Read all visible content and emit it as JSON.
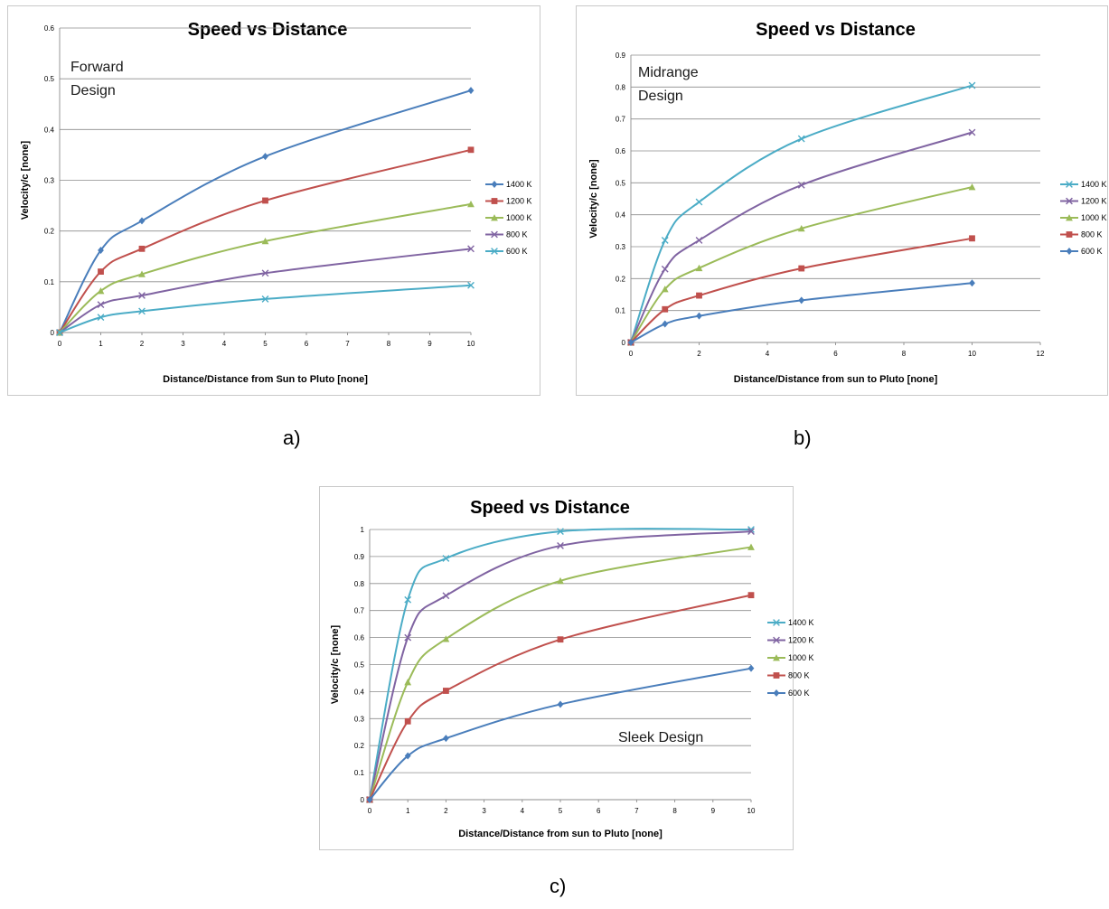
{
  "captions": {
    "a": "a)",
    "b": "b)",
    "c": "c)"
  },
  "chart_data": [
    {
      "panel": "a",
      "type": "line",
      "title": "Speed vs Distance",
      "xlabel": "Distance/Distance from Sun to Pluto [none]",
      "ylabel": "Velocity/c [none]",
      "annotation": [
        "Forward",
        "Design"
      ],
      "xlim": [
        0,
        10
      ],
      "xticks": [
        0,
        1,
        2,
        3,
        4,
        5,
        6,
        7,
        8,
        9,
        10
      ],
      "xtick_labels": [
        "0",
        "1",
        "2",
        "3",
        "4",
        "5",
        "6",
        "7",
        "8",
        "9",
        "10"
      ],
      "ylim": [
        0,
        0.6
      ],
      "yticks": [
        0,
        0.1,
        0.2,
        0.3,
        0.4,
        0.5,
        0.6
      ],
      "ytick_labels": [
        "0",
        "0.1",
        "0.2",
        "0.3",
        "0.4",
        "0.5",
        "0.6"
      ],
      "grid": "horizontal",
      "legend_position": "right",
      "x": [
        0,
        1,
        2,
        5,
        10
      ],
      "series": [
        {
          "name": "1400 K",
          "color": "#4a7ebb",
          "marker": "diamond",
          "values": [
            0,
            0.162,
            0.22,
            0.347,
            0.477
          ]
        },
        {
          "name": "1200 K",
          "color": "#c0504d",
          "marker": "square",
          "values": [
            0,
            0.12,
            0.165,
            0.26,
            0.36
          ]
        },
        {
          "name": "1000 K",
          "color": "#9bbb59",
          "marker": "triangle",
          "values": [
            0,
            0.082,
            0.115,
            0.18,
            0.253
          ]
        },
        {
          "name": "800 K",
          "color": "#8064a2",
          "marker": "x",
          "values": [
            0,
            0.055,
            0.073,
            0.117,
            0.165
          ]
        },
        {
          "name": "600 K",
          "color": "#4bacc6",
          "marker": "x",
          "values": [
            0,
            0.03,
            0.042,
            0.066,
            0.093
          ]
        }
      ]
    },
    {
      "panel": "b",
      "type": "line",
      "title": "Speed vs Distance",
      "xlabel": "Distance/Distance from sun to Pluto [none]",
      "ylabel": "Velocity/c [none]",
      "annotation": [
        "Midrange",
        "Design"
      ],
      "xlim": [
        0,
        12
      ],
      "xticks": [
        0,
        2,
        4,
        6,
        8,
        10,
        12
      ],
      "xtick_labels": [
        "0",
        "2",
        "4",
        "6",
        "8",
        "10",
        "12"
      ],
      "ylim": [
        0,
        0.9
      ],
      "yticks": [
        0,
        0.1,
        0.2,
        0.3,
        0.4,
        0.5,
        0.6,
        0.7,
        0.8,
        0.9
      ],
      "ytick_labels": [
        "0",
        "0.1",
        "0.2",
        "0.3",
        "0.4",
        "0.5",
        "0.6",
        "0.7",
        "0.8",
        "0.9"
      ],
      "grid": "horizontal",
      "legend_position": "right",
      "x": [
        0,
        1,
        2,
        5,
        10
      ],
      "series": [
        {
          "name": "1400 K",
          "color": "#4bacc6",
          "marker": "x",
          "values": [
            0,
            0.32,
            0.44,
            0.638,
            0.805
          ]
        },
        {
          "name": "1200 K",
          "color": "#8064a2",
          "marker": "x",
          "values": [
            0,
            0.23,
            0.32,
            0.493,
            0.658
          ]
        },
        {
          "name": "1000 K",
          "color": "#9bbb59",
          "marker": "triangle",
          "values": [
            0,
            0.167,
            0.233,
            0.357,
            0.487
          ]
        },
        {
          "name": "800 K",
          "color": "#c0504d",
          "marker": "square",
          "values": [
            0,
            0.104,
            0.147,
            0.232,
            0.326
          ]
        },
        {
          "name": "600 K",
          "color": "#4a7ebb",
          "marker": "diamond",
          "values": [
            0,
            0.058,
            0.083,
            0.132,
            0.186
          ]
        }
      ]
    },
    {
      "panel": "c",
      "type": "line",
      "title": "Speed vs Distance",
      "xlabel": "Distance/Distance from sun to Pluto [none]",
      "ylabel": "Velocity/c [none]",
      "annotation": [
        "Sleek Design"
      ],
      "xlim": [
        0,
        10
      ],
      "xticks": [
        0,
        1,
        2,
        3,
        4,
        5,
        6,
        7,
        8,
        9,
        10
      ],
      "xtick_labels": [
        "0",
        "1",
        "2",
        "3",
        "4",
        "5",
        "6",
        "7",
        "8",
        "9",
        "10"
      ],
      "ylim": [
        0,
        1
      ],
      "yticks": [
        0,
        0.1,
        0.2,
        0.3,
        0.4,
        0.5,
        0.6,
        0.7,
        0.8,
        0.9,
        1
      ],
      "ytick_labels": [
        "0",
        "0.1",
        "0.2",
        "0.3",
        "0.4",
        "0.5",
        "0.6",
        "0.7",
        "0.8",
        "0.9",
        "1"
      ],
      "grid": "horizontal",
      "legend_position": "right",
      "x": [
        0,
        1,
        2,
        5,
        10
      ],
      "series": [
        {
          "name": "1400 K",
          "color": "#4bacc6",
          "marker": "x",
          "values": [
            0,
            0.74,
            0.893,
            0.993,
            1.0
          ]
        },
        {
          "name": "1200 K",
          "color": "#8064a2",
          "marker": "x",
          "values": [
            0,
            0.6,
            0.755,
            0.94,
            0.993
          ]
        },
        {
          "name": "1000 K",
          "color": "#9bbb59",
          "marker": "triangle",
          "values": [
            0,
            0.435,
            0.595,
            0.81,
            0.935
          ]
        },
        {
          "name": "800 K",
          "color": "#c0504d",
          "marker": "square",
          "values": [
            0,
            0.29,
            0.403,
            0.593,
            0.757
          ]
        },
        {
          "name": "600 K",
          "color": "#4a7ebb",
          "marker": "diamond",
          "values": [
            0,
            0.162,
            0.227,
            0.353,
            0.486
          ]
        }
      ]
    }
  ]
}
